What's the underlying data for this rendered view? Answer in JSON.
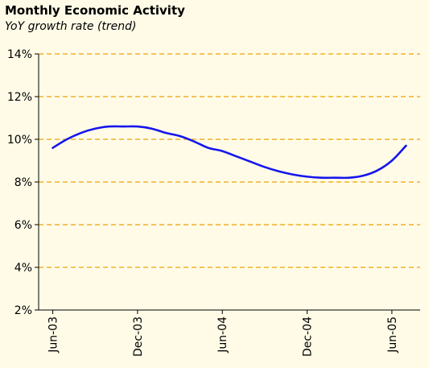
{
  "header": {
    "title": "Monthly Economic Activity",
    "subtitle": "YoY growth rate (trend)"
  },
  "colors": {
    "background": "#fffbe7",
    "series": "#1515ee",
    "grid": "#f0a000",
    "axis": "#000000"
  },
  "chart_data": {
    "type": "line",
    "title": "Monthly Economic Activity",
    "subtitle": "YoY growth rate (trend)",
    "xlabel": "",
    "ylabel": "",
    "ylim": [
      2,
      14
    ],
    "yticks": [
      2,
      4,
      6,
      8,
      10,
      12,
      14
    ],
    "ytick_labels": [
      "2%",
      "4%",
      "6%",
      "8%",
      "10%",
      "12%",
      "14%"
    ],
    "xticks": [
      "Jun-03",
      "Dec-03",
      "Jun-04",
      "Dec-04",
      "Jun-05"
    ],
    "xlim": [
      "May-03",
      "Aug-05"
    ],
    "grid": "horizontal dashed",
    "legend": "none",
    "x": [
      "Jun-03",
      "Jul-03",
      "Aug-03",
      "Sep-03",
      "Oct-03",
      "Nov-03",
      "Dec-03",
      "Jan-04",
      "Feb-04",
      "Mar-04",
      "Apr-04",
      "May-04",
      "Jun-04",
      "Jul-04",
      "Aug-04",
      "Sep-04",
      "Oct-04",
      "Nov-04",
      "Dec-04",
      "Jan-05",
      "Feb-05",
      "Mar-05",
      "Apr-05",
      "May-05",
      "Jun-05",
      "Jul-05"
    ],
    "series": [
      {
        "values": [
          9.6,
          10.0,
          10.3,
          10.5,
          10.6,
          10.6,
          10.6,
          10.5,
          10.3,
          10.15,
          9.9,
          9.6,
          9.45,
          9.2,
          8.95,
          8.7,
          8.5,
          8.35,
          8.25,
          8.2,
          8.2,
          8.2,
          8.3,
          8.55,
          9.0,
          9.7
        ]
      }
    ]
  }
}
